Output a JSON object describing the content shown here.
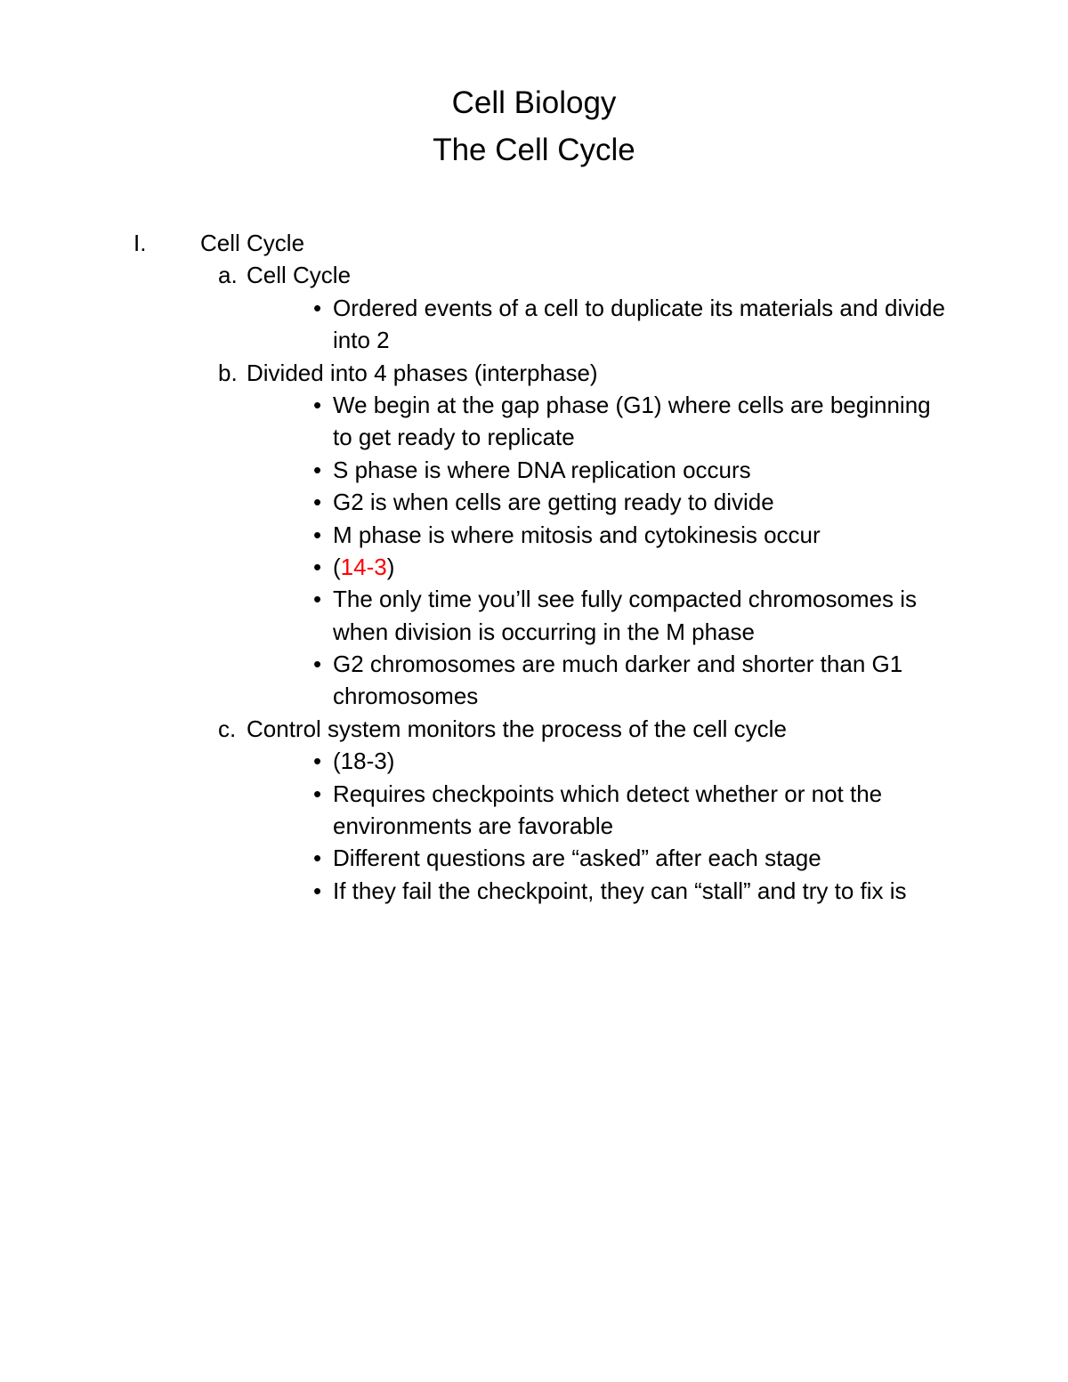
{
  "title_lines": [
    "Cell Biology",
    "The Cell Cycle"
  ],
  "colors": {
    "text": "#000000",
    "highlight": "#ff0000",
    "background": "#ffffff"
  },
  "typography": {
    "title_fontsize": 35,
    "body_fontsize": 26,
    "font_family": "Verdana"
  },
  "outline": {
    "roman": "I.",
    "label": "Cell Cycle",
    "items": [
      {
        "letter": "a.",
        "label": "Cell Cycle",
        "bullets": [
          {
            "text": "Ordered events of a cell to duplicate its materials and divide into 2"
          }
        ]
      },
      {
        "letter": "b.",
        "label": "Divided into 4 phases (interphase)",
        "bullets": [
          {
            "text": "We begin at the gap phase (G1) where cells are beginning to get ready to replicate"
          },
          {
            "text": "S phase is where DNA replication occurs"
          },
          {
            "text": "G2 is when cells are getting ready to divide"
          },
          {
            "text": "M phase is where mitosis and cytokinesis occur"
          },
          {
            "pre": "(",
            "red": "14-3",
            "post": ")"
          },
          {
            "text": "The only time you’ll see fully compacted chromosomes is when division is occurring in the M phase"
          },
          {
            "text": "G2 chromosomes are much darker and shorter than G1 chromosomes"
          }
        ]
      },
      {
        "letter": "c.",
        "label": "Control system monitors the process of the cell cycle",
        "bullets": [
          {
            "text": "(18-3)"
          },
          {
            "text": "Requires checkpoints which detect whether or not the environments are favorable"
          },
          {
            "text": "Different questions are “asked” after each stage"
          },
          {
            "text": "If they fail the checkpoint, they can “stall” and try to fix is"
          }
        ]
      }
    ]
  }
}
